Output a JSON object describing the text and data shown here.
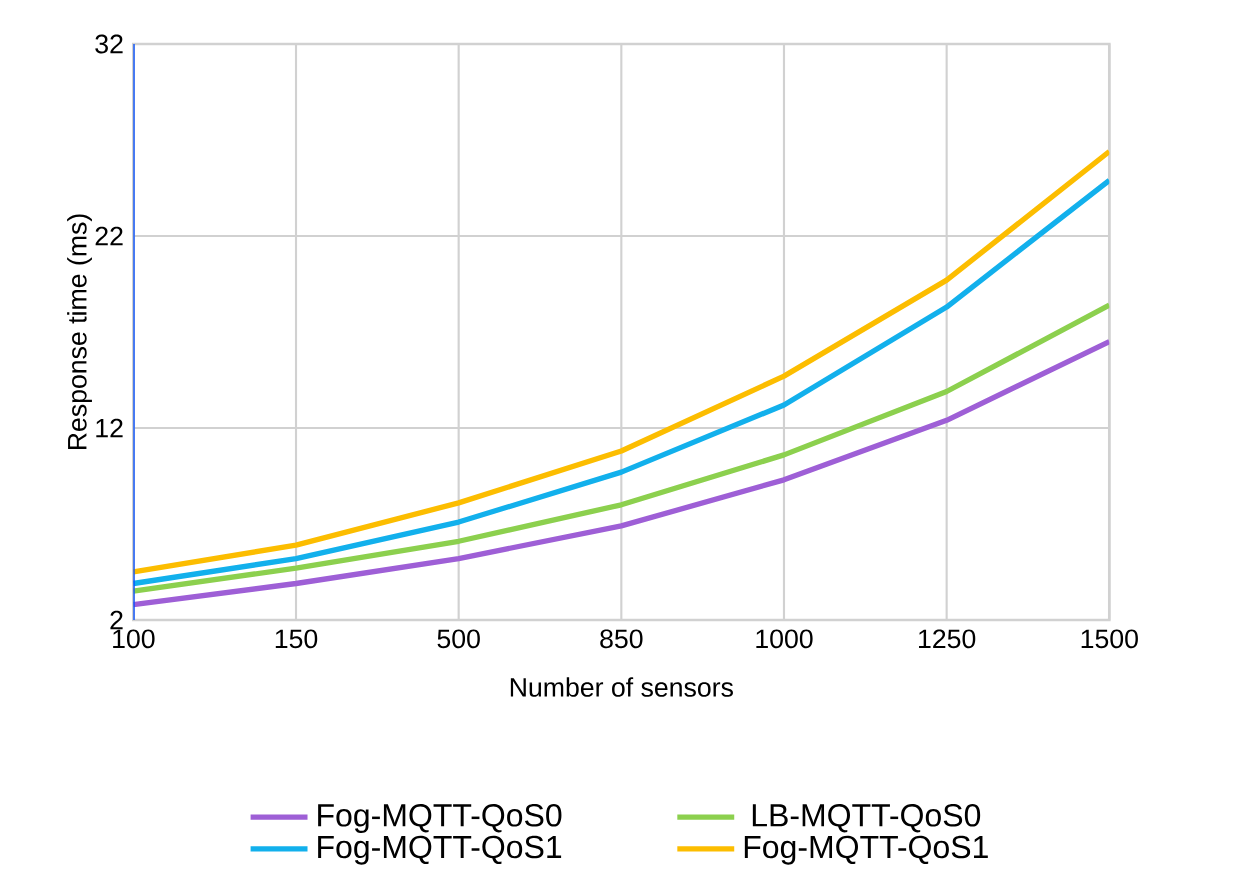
{
  "chart_data": {
    "type": "line",
    "xlabel": "Number of sensors",
    "ylabel": "Response time (ms)",
    "categories": [
      "100",
      "150",
      "500",
      "850",
      "1000",
      "1250",
      "1500"
    ],
    "series": [
      {
        "name": "Fog-MQTT-QoS0",
        "color": "#9e5fd6",
        "values": [
          2.8,
          3.9,
          5.2,
          6.9,
          9.3,
          12.4,
          16.5
        ]
      },
      {
        "name": "LB-MQTT-QoS0",
        "color": "#8cd04e",
        "values": [
          3.5,
          4.7,
          6.1,
          8.0,
          10.6,
          13.9,
          18.4
        ]
      },
      {
        "name": "Fog-MQTT-QoS1",
        "color": "#12b0ec",
        "values": [
          3.9,
          5.2,
          7.1,
          9.7,
          13.2,
          18.3,
          24.9
        ]
      },
      {
        "name": "Fog-MQTT-QoS1",
        "color": "#fcbd00",
        "values": [
          4.5,
          5.9,
          8.1,
          10.8,
          14.7,
          19.7,
          26.4
        ]
      }
    ],
    "ylim": [
      2,
      32
    ],
    "yticks": [
      2,
      12,
      22,
      32
    ],
    "grid": true,
    "legend": "bottom",
    "marker": "none",
    "line_style": "solid"
  }
}
